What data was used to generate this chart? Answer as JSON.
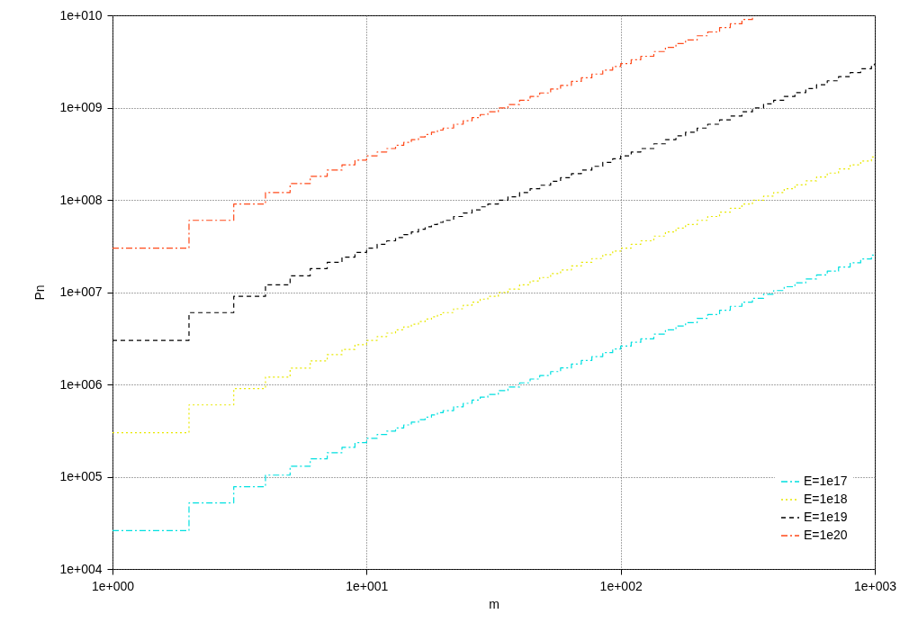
{
  "chart_data": {
    "type": "step",
    "xlabel": "m",
    "ylabel": "Pn",
    "log": "xy",
    "grid": true,
    "legend": "bottom right",
    "x": [
      1,
      2,
      3,
      4,
      5,
      6,
      7,
      8,
      9,
      10,
      11,
      12,
      13,
      14,
      15,
      16,
      17,
      18,
      19,
      20,
      22,
      24,
      26,
      28,
      30,
      33,
      36,
      40,
      44,
      48,
      53,
      58,
      64,
      70,
      77,
      85,
      93,
      100,
      110,
      120,
      135,
      150,
      165,
      180,
      200,
      220,
      245,
      270,
      300,
      330,
      365,
      400,
      440,
      485,
      535,
      590,
      650,
      720,
      800,
      880,
      970,
      1000
    ],
    "xlim": [
      1,
      1000
    ],
    "xticks": [
      {
        "value": 1,
        "label": "1e+000"
      },
      {
        "value": 10,
        "label": "1e+001"
      },
      {
        "value": 100,
        "label": "1e+002"
      },
      {
        "value": 1000,
        "label": "1e+003"
      }
    ],
    "ylim": [
      10000,
      10000000000
    ],
    "yticks": [
      {
        "value": 10000,
        "label": "1e+004"
      },
      {
        "value": 100000,
        "label": "1e+005"
      },
      {
        "value": 1000000,
        "label": "1e+006"
      },
      {
        "value": 10000000,
        "label": "1e+007"
      },
      {
        "value": 100000000,
        "label": "1e+008"
      },
      {
        "value": 1000000000,
        "label": "1e+009"
      },
      {
        "value": 10000000000,
        "label": "1e+010"
      }
    ],
    "series": [
      {
        "name": "E=1e17",
        "color": "#00e0e0",
        "line_style": "dashdot",
        "values": [
          26000.0,
          52000.0,
          78000.0,
          104000.0,
          130000.0,
          156000.0,
          182000.0,
          208000.0,
          234000.0,
          260000.0,
          286000.0,
          312000.0,
          338000.0,
          364000.0,
          390000.0,
          416000.0,
          442000.0,
          468000.0,
          494000.0,
          520000.0,
          572000.0,
          624000.0,
          676000.0,
          728000.0,
          780000.0,
          858000.0,
          936000.0,
          1040000.0,
          1144000.0,
          1248000.0,
          1378000.0,
          1508000.0,
          1664000.0,
          1820000.0,
          2002000.0,
          2210000.0,
          2418000.0,
          2600000.0,
          2860000.0,
          3120000.0,
          3510000.0,
          3900000.0,
          4290000.0,
          4680000.0,
          5200000.0,
          5720000.0,
          6370000.0,
          7020000.0,
          7800000.0,
          8580000.0,
          9490000.0,
          10400000.0,
          11440000.0,
          12610000.0,
          13910000.0,
          15340000.0,
          16900000.0,
          18720000.0,
          20800000.0,
          22880000.0,
          25220000.0,
          26000000.0
        ]
      },
      {
        "name": "E=1e18",
        "color": "#e8e800",
        "line_style": "dotted",
        "values": [
          300000.0,
          600000.0,
          900000.0,
          1200000.0,
          1500000.0,
          1800000.0,
          2100000.0,
          2400000.0,
          2700000.0,
          3000000.0,
          3300000.0,
          3600000.0,
          3900000.0,
          4200000.0,
          4500000.0,
          4800000.0,
          5100000.0,
          5400000.0,
          5700000.0,
          6000000.0,
          6600000.0,
          7200000.0,
          7800000.0,
          8400000.0,
          9000000.0,
          9900000.0,
          10800000.0,
          12000000.0,
          13200000.0,
          14400000.0,
          15900000.0,
          17400000.0,
          19200000.0,
          21000000.0,
          23100000.0,
          25500000.0,
          27900000.0,
          30000000.0,
          33000000.0,
          36000000.0,
          40500000.0,
          45000000.0,
          49500000.0,
          54000000.0,
          60000000.0,
          66000000.0,
          73500000.0,
          81000000.0,
          90000000.0,
          99000000.0,
          109500000.0,
          120000000.0,
          132000000.0,
          145500000.0,
          160500000.0,
          177000000.0,
          195000000.0,
          216000000.0,
          240000000.0,
          264000000.0,
          291000000.0,
          300000000.0
        ]
      },
      {
        "name": "E=1e19",
        "color": "#000000",
        "line_style": "dashed",
        "values": [
          3000000.0,
          6000000.0,
          9000000.0,
          12000000.0,
          15000000.0,
          18000000.0,
          21000000.0,
          24000000.0,
          27000000.0,
          30000000.0,
          33000000.0,
          36000000.0,
          39000000.0,
          42000000.0,
          45000000.0,
          48000000.0,
          51000000.0,
          54000000.0,
          57000000.0,
          60000000.0,
          66000000.0,
          72000000.0,
          78000000.0,
          84000000.0,
          90000000.0,
          99000000.0,
          108000000.0,
          120000000.0,
          132000000.0,
          144000000.0,
          159000000.0,
          174000000.0,
          192000000.0,
          210000000.0,
          231000000.0,
          255000000.0,
          279000000.0,
          300000000.0,
          330000000.0,
          360000000.0,
          405000000.0,
          450000000.0,
          495000000.0,
          540000000.0,
          600000000.0,
          660000000.0,
          735000000.0,
          810000000.0,
          900000000.0,
          990000000.0,
          1095000000.0,
          1200000000.0,
          1320000000.0,
          1455000000.0,
          1605000000.0,
          1770000000.0,
          1950000000.0,
          2160000000.0,
          2400000000.0,
          2640000000.0,
          2910000000.0,
          3000000000.0
        ]
      },
      {
        "name": "E=1e20",
        "color": "#ff4a1a",
        "line_style": "dashdot",
        "values": [
          30000000.0,
          60000000.0,
          90000000.0,
          120000000.0,
          150000000.0,
          180000000.0,
          210000000.0,
          240000000.0,
          270000000.0,
          300000000.0,
          330000000.0,
          360000000.0,
          390000000.0,
          420000000.0,
          450000000.0,
          480000000.0,
          510000000.0,
          540000000.0,
          570000000.0,
          600000000.0,
          660000000.0,
          720000000.0,
          780000000.0,
          840000000.0,
          900000000.0,
          990000000.0,
          1080000000.0,
          1200000000.0,
          1320000000.0,
          1440000000.0,
          1590000000.0,
          1740000000.0,
          1920000000.0,
          2100000000.0,
          2310000000.0,
          2550000000.0,
          2790000000.0,
          3000000000.0,
          3300000000.0,
          3600000000.0,
          4050000000.0,
          4500000000.0,
          4950000000.0,
          5400000000.0,
          6000000000.0,
          6600000000.0,
          7350000000.0,
          8100000000.0,
          9000000000.0,
          9900000000.0,
          null,
          null,
          null,
          null,
          null,
          null,
          null,
          null,
          null,
          null,
          null,
          null
        ]
      }
    ]
  }
}
